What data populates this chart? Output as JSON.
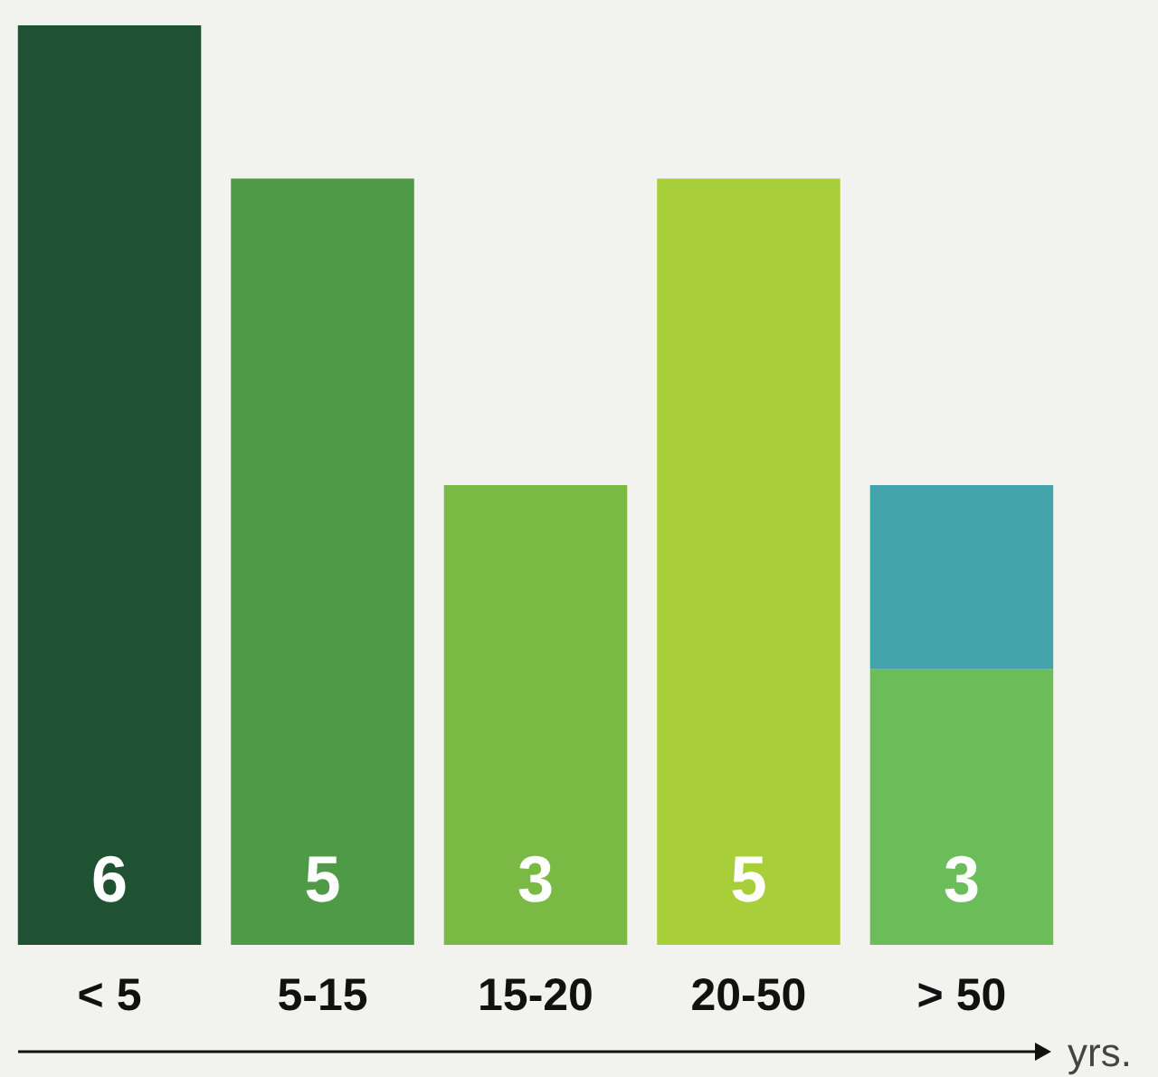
{
  "chart_data": {
    "type": "bar",
    "stacked": true,
    "xlabel": "yrs.",
    "categories": [
      "< 5",
      "5-15",
      "15-20",
      "20-50",
      "> 50"
    ],
    "series": [
      {
        "colors": [
          "#1f5232",
          "#4f9a46",
          "#79b944",
          "#a8cf3a",
          "#6bbd5a"
        ],
        "values": [
          6,
          5,
          3,
          5,
          1.8
        ],
        "value_labels": [
          "6",
          "5",
          "3",
          "5",
          null
        ]
      },
      {
        "color": "#43a5ab",
        "values": [
          null,
          null,
          null,
          null,
          1.2
        ]
      }
    ],
    "totals": [
      null,
      null,
      null,
      null,
      "3"
    ]
  }
}
